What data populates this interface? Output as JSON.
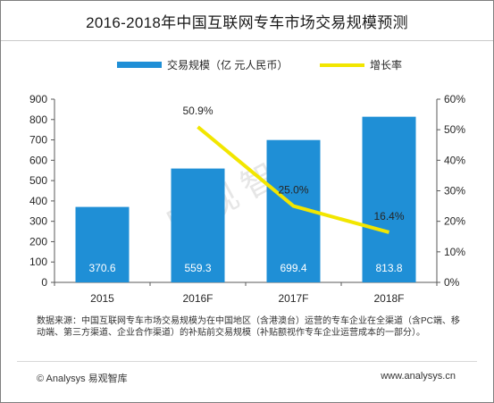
{
  "title": "2016-2018年中国互联网专车市场交易规模预测",
  "watermark": "易观智库",
  "colors": {
    "bar": "#1f8fd6",
    "line": "#f2e600",
    "label": "#ffffff",
    "text": "#333333"
  },
  "chart_data": {
    "type": "bar",
    "categories": [
      "2015",
      "2016F",
      "2017F",
      "2018F"
    ],
    "series": [
      {
        "name": "交易规模（亿 元人民币）",
        "type": "bar",
        "axis": "left",
        "values": [
          370.6,
          559.3,
          699.4,
          813.8
        ],
        "labels": [
          "370.6",
          "559.3",
          "699.4",
          "813.8"
        ]
      },
      {
        "name": "增长率",
        "type": "line",
        "axis": "right",
        "values": [
          null,
          50.9,
          25.0,
          16.4
        ],
        "labels": [
          "",
          "50.9%",
          "25.0%",
          "16.4%"
        ]
      }
    ],
    "y_left": {
      "min": 0,
      "max": 900,
      "ticks": [
        "0",
        "100",
        "200",
        "300",
        "400",
        "500",
        "600",
        "700",
        "800",
        "900"
      ]
    },
    "y_right": {
      "min": 0,
      "max": 60,
      "ticks": [
        "0%",
        "10%",
        "20%",
        "30%",
        "40%",
        "50%",
        "60%"
      ]
    },
    "grid": false,
    "legend_placement": "top"
  },
  "note": "数据来源：中国互联网专车市场交易规模为在中国地区（含港澳台）运营的专车企业在全渠道（含PC端、移动端、第三方渠道、企业合作渠道）的补贴前交易规模（补贴额视作专车企业运营成本的一部分）。",
  "footer": {
    "left": "© Analysys 易观智库",
    "right": "www.analysys.cn"
  }
}
